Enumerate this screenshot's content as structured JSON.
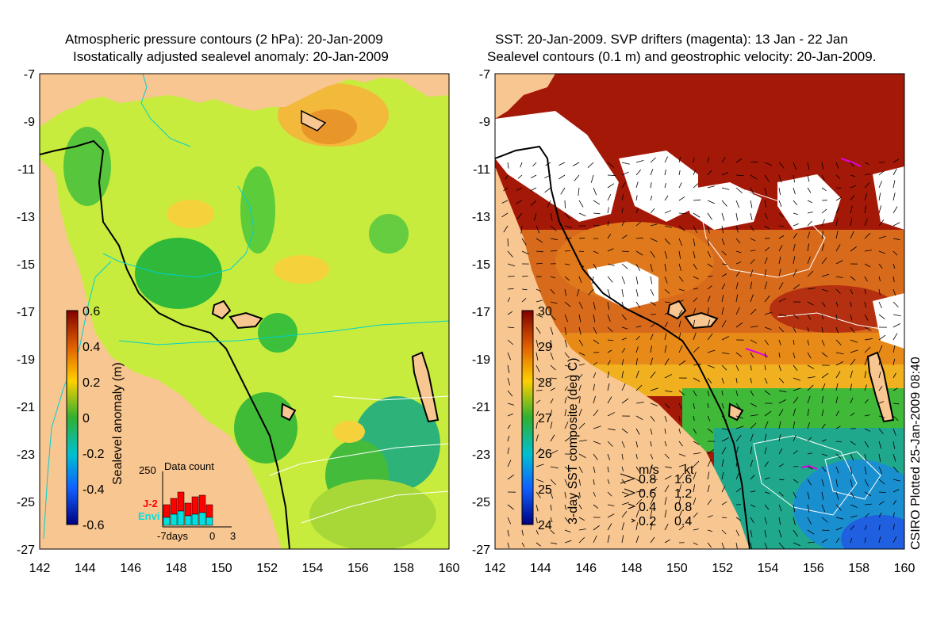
{
  "left_panel": {
    "title_line1": "Atmospheric pressure contours (2 hPa): 20-Jan-2009",
    "title_line2": "Isostatically adjusted sealevel anomaly: 20-Jan-2009",
    "colorbar_label": "Sealevel anomaly (m)",
    "colorbar_ticks": [
      "0.6",
      "0.4",
      "0.2",
      "0",
      "-0.2",
      "-0.4",
      "-0.6"
    ],
    "inset": {
      "title": "Data count",
      "y_tick": "250",
      "x_ticks": [
        "-7days",
        "0",
        "3"
      ],
      "legend": [
        {
          "label": "J-2",
          "color": "#ff0000"
        },
        {
          "label": "Envi",
          "color": "#00e0e0"
        }
      ]
    }
  },
  "right_panel": {
    "title_line1": "SST: 20-Jan-2009. SVP drifters (magenta): 13 Jan - 22 Jan",
    "title_line2": "Sealevel contours (0.1 m) and geostrophic velocity: 20-Jan-2009.",
    "colorbar_label": "3-day SST composite (deg C)",
    "colorbar_ticks": [
      "30",
      "29",
      "28",
      "27",
      "26",
      "25",
      "24"
    ],
    "velocity_legend": {
      "header_ms": "m/s",
      "header_kt": "kt",
      "rows": [
        {
          "ms": "0.8",
          "kt": "1.6"
        },
        {
          "ms": "0.6",
          "kt": "1.2"
        },
        {
          "ms": "0.4",
          "kt": "0.8"
        },
        {
          "ms": "0.2",
          "kt": "0.4"
        }
      ]
    }
  },
  "axes": {
    "y_ticks": [
      "-7",
      "-9",
      "-11",
      "-13",
      "-15",
      "-17",
      "-19",
      "-21",
      "-23",
      "-25",
      "-27"
    ],
    "x_ticks": [
      "142",
      "144",
      "146",
      "148",
      "150",
      "152",
      "154",
      "156",
      "158",
      "160"
    ]
  },
  "credit": "CSIRO Plotted 25-Jan-2009 08:40",
  "colors": {
    "land": "#f8c690",
    "sst_hot": "#b01808",
    "cloud": "#ffffff",
    "anomaly_mid": "#bfe83a"
  }
}
